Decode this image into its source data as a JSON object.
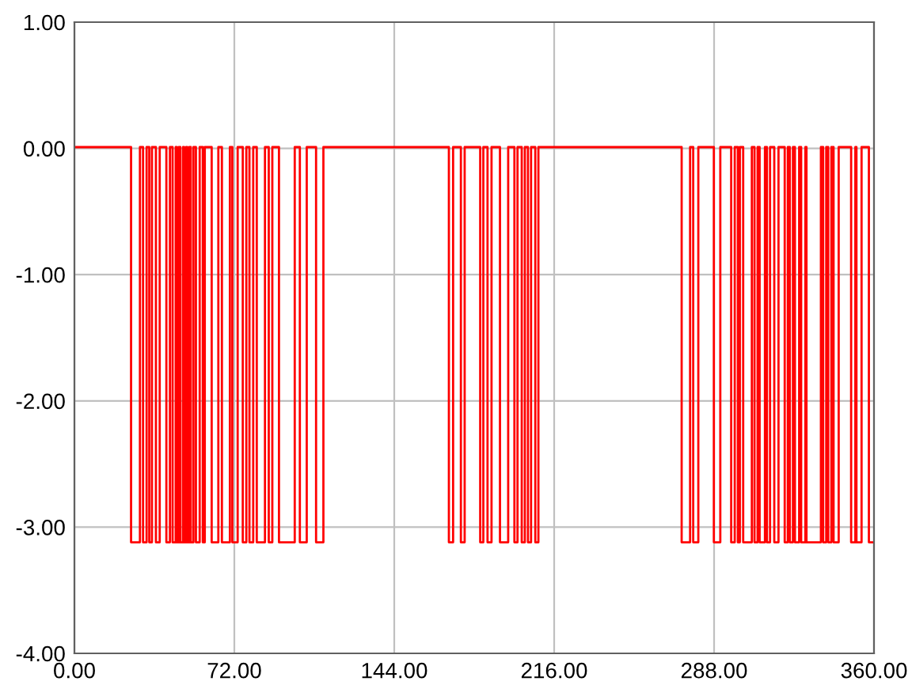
{
  "chart_data": {
    "type": "line",
    "x": [
      0,
      25.5,
      25.5,
      29.5,
      29.5,
      30.9,
      30.9,
      32.5,
      32.5,
      33.7,
      33.7,
      34.9,
      34.9,
      36.7,
      36.7,
      38.4,
      38.4,
      41.4,
      41.4,
      43.0,
      43.0,
      44.2,
      44.2,
      45.6,
      45.6,
      46.1,
      46.1,
      47.0,
      47.0,
      47.7,
      47.7,
      48.9,
      48.9,
      49.4,
      49.4,
      50.3,
      50.3,
      50.8,
      50.8,
      51.7,
      51.7,
      52.4,
      52.4,
      53.6,
      53.6,
      54.7,
      54.7,
      56.4,
      56.4,
      57.8,
      57.8,
      58.7,
      58.7,
      61.8,
      61.8,
      64.8,
      64.8,
      66.4,
      66.4,
      70.0,
      70.0,
      71.1,
      71.1,
      73.5,
      73.5,
      75.8,
      75.8,
      77.4,
      77.4,
      78.8,
      78.8,
      80.5,
      80.5,
      82.1,
      82.1,
      85.8,
      85.8,
      87.5,
      87.5,
      89.1,
      89.1,
      92.1,
      92.1,
      99.2,
      99.2,
      101.5,
      101.5,
      104.6,
      104.6,
      108.8,
      108.8,
      112.1,
      112.1,
      168.6,
      168.6,
      170.5,
      170.5,
      174.0,
      174.0,
      175.7,
      175.7,
      182.7,
      182.7,
      184.1,
      184.1,
      186.0,
      186.0,
      187.8,
      187.8,
      191.6,
      191.6,
      195.3,
      195.3,
      198.1,
      198.1,
      199.5,
      199.5,
      201.4,
      201.4,
      202.8,
      202.8,
      204.2,
      204.2,
      205.6,
      205.6,
      207.5,
      207.5,
      208.9,
      208.9,
      273.4,
      273.4,
      277.2,
      277.2,
      278.6,
      278.6,
      280.9,
      280.9,
      287.9,
      287.9,
      290.8,
      290.8,
      295.7,
      295.7,
      297.3,
      297.3,
      298.7,
      298.7,
      299.6,
      299.6,
      301.1,
      301.1,
      305.0,
      305.0,
      306.2,
      306.2,
      307.6,
      307.6,
      308.5,
      308.5,
      310.9,
      310.9,
      311.8,
      311.8,
      313.2,
      313.2,
      315.1,
      315.1,
      317.0,
      317.0,
      319.8,
      319.8,
      321.2,
      321.2,
      322.1,
      322.1,
      323.5,
      323.5,
      324.4,
      324.4,
      326.3,
      326.3,
      327.2,
      327.2,
      329.1,
      329.1,
      329.6,
      329.6,
      336.1,
      336.1,
      337.1,
      337.1,
      338.5,
      338.5,
      339.4,
      339.4,
      340.8,
      340.8,
      341.8,
      341.8,
      344.1,
      344.1,
      349.7,
      349.7,
      351.6,
      351.6,
      352.1,
      352.1,
      354.4,
      354.4,
      357.7,
      357.7,
      360
    ],
    "series": [
      {
        "color": "#ff0000",
        "values": [
          0.01,
          0.01,
          -3.12,
          -3.12,
          0.01,
          0.01,
          -3.12,
          -3.12,
          0.01,
          0.01,
          -3.12,
          -3.12,
          0.01,
          0.01,
          -3.12,
          -3.12,
          0.01,
          0.01,
          -3.12,
          -3.12,
          0.01,
          0.01,
          -3.12,
          -3.12,
          0.01,
          0.01,
          -3.12,
          -3.12,
          0.01,
          0.01,
          -3.12,
          -3.12,
          0.01,
          0.01,
          -3.12,
          -3.12,
          0.01,
          0.01,
          -3.12,
          -3.12,
          0.01,
          0.01,
          -3.12,
          -3.12,
          0.01,
          0.01,
          -3.12,
          -3.12,
          0.01,
          0.01,
          -3.12,
          -3.12,
          0.01,
          0.01,
          -3.12,
          -3.12,
          0.01,
          0.01,
          -3.12,
          -3.12,
          0.01,
          0.01,
          -3.12,
          -3.12,
          0.01,
          0.01,
          -3.12,
          -3.12,
          0.01,
          0.01,
          -3.12,
          -3.12,
          0.01,
          0.01,
          -3.12,
          -3.12,
          0.01,
          0.01,
          -3.12,
          -3.12,
          0.01,
          0.01,
          -3.12,
          -3.12,
          0.01,
          0.01,
          -3.12,
          -3.12,
          0.01,
          0.01,
          -3.12,
          -3.12,
          0.01,
          0.01,
          -3.12,
          -3.12,
          0.01,
          0.01,
          -3.12,
          -3.12,
          0.01,
          0.01,
          -3.12,
          -3.12,
          0.01,
          0.01,
          -3.12,
          -3.12,
          0.01,
          0.01,
          -3.12,
          -3.12,
          0.01,
          0.01,
          -3.12,
          -3.12,
          0.01,
          0.01,
          -3.12,
          -3.12,
          0.01,
          0.01,
          -3.12,
          -3.12,
          0.01,
          0.01,
          -3.12,
          -3.12,
          0.01,
          0.01,
          -3.12,
          -3.12,
          0.01,
          0.01,
          -3.12,
          -3.12,
          0.01,
          0.01,
          -3.12,
          -3.12,
          0.01,
          0.01,
          -3.12,
          -3.12,
          0.01,
          0.01,
          -3.12,
          -3.12,
          0.01,
          0.01,
          -3.12,
          -3.12,
          0.01,
          0.01,
          -3.12,
          -3.12,
          0.01,
          0.01,
          -3.12,
          -3.12,
          0.01,
          0.01,
          -3.12,
          -3.12,
          0.01,
          0.01,
          -3.12,
          -3.12,
          0.01,
          0.01,
          -3.12,
          -3.12,
          0.01,
          0.01,
          -3.12,
          -3.12,
          0.01,
          0.01,
          -3.12,
          -3.12,
          0.01,
          0.01,
          -3.12,
          -3.12,
          0.01,
          0.01,
          -3.12,
          -3.12,
          0.01,
          0.01,
          -3.12,
          -3.12,
          0.01,
          0.01,
          -3.12,
          -3.12,
          0.01,
          0.01,
          -3.12,
          -3.12,
          0.01,
          0.01,
          -3.12,
          -3.12,
          0.01,
          0.01,
          -3.12,
          -3.12,
          0.01,
          0.01,
          -3.12,
          -3.12
        ]
      }
    ],
    "xlim": [
      0,
      360
    ],
    "xticks": [
      {
        "value": 0,
        "label": "0.00"
      },
      {
        "value": 72,
        "label": "72.00"
      },
      {
        "value": 144,
        "label": "144.00"
      },
      {
        "value": 216,
        "label": "216.00"
      },
      {
        "value": 288,
        "label": "288.00"
      },
      {
        "value": 360,
        "label": "360.00"
      }
    ],
    "ylim": [
      -4,
      1
    ],
    "yticks": [
      {
        "value": -4,
        "label": "-4.00"
      },
      {
        "value": -3,
        "label": "-3.00"
      },
      {
        "value": -2,
        "label": "-2.00"
      },
      {
        "value": -1,
        "label": "-1.00"
      },
      {
        "value": 0,
        "label": "0.00"
      },
      {
        "value": 1,
        "label": "1.00"
      }
    ],
    "grid": true
  }
}
